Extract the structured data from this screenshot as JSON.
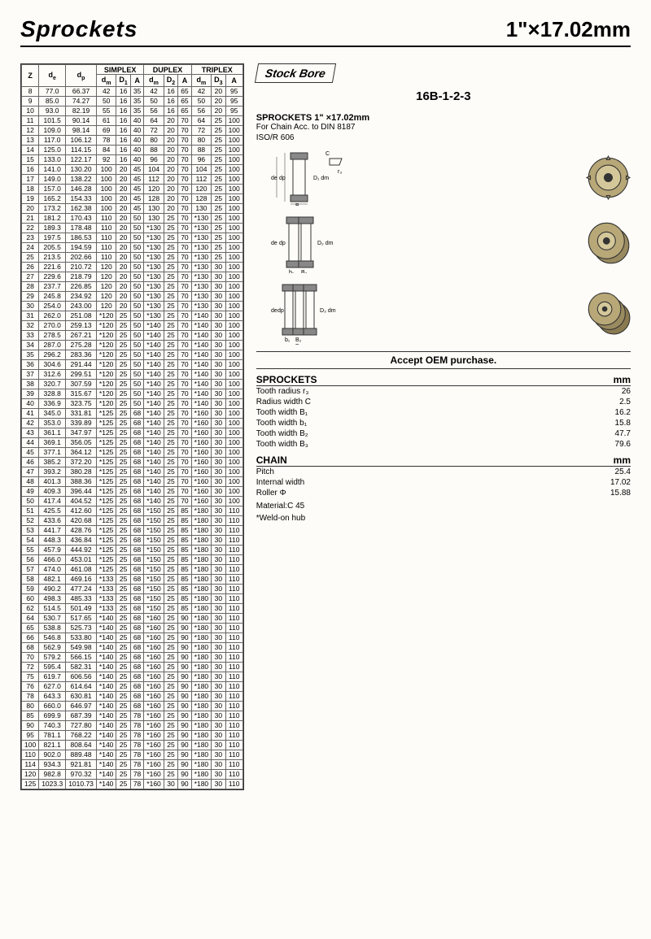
{
  "title": "Sprockets",
  "size_label": "1\"×17.02mm",
  "stock_bore": "Stock Bore",
  "model": "16B-1-2-3",
  "spec_title": "SPROCKETS 1\" ×17.02mm",
  "spec_chain": "For Chain  Acc. to  DIN 8187",
  "spec_iso": "ISO/R 606",
  "oem": "Accept OEM purchase.",
  "table": {
    "headers": {
      "z": "Z",
      "de": "d",
      "dp": "d",
      "simplex": "SIMPLEX",
      "duplex": "DUPLEX",
      "triplex": "TRIPLEX",
      "dm": "d",
      "d1": "D",
      "d2": "D",
      "d3": "D",
      "a": "A"
    },
    "rows": [
      [
        "8",
        "77.0",
        "66.37",
        "42",
        "16",
        "35",
        "42",
        "16",
        "65",
        "42",
        "20",
        "95"
      ],
      [
        "9",
        "85.0",
        "74.27",
        "50",
        "16",
        "35",
        "50",
        "16",
        "65",
        "50",
        "20",
        "95"
      ],
      [
        "10",
        "93.0",
        "82.19",
        "55",
        "16",
        "35",
        "56",
        "16",
        "65",
        "56",
        "20",
        "95"
      ],
      [
        "11",
        "101.5",
        "90.14",
        "61",
        "16",
        "40",
        "64",
        "20",
        "70",
        "64",
        "25",
        "100"
      ],
      [
        "12",
        "109.0",
        "98.14",
        "69",
        "16",
        "40",
        "72",
        "20",
        "70",
        "72",
        "25",
        "100"
      ],
      [
        "13",
        "117.0",
        "106.12",
        "78",
        "16",
        "40",
        "80",
        "20",
        "70",
        "80",
        "25",
        "100"
      ],
      [
        "14",
        "125.0",
        "114.15",
        "84",
        "16",
        "40",
        "88",
        "20",
        "70",
        "88",
        "25",
        "100"
      ],
      [
        "15",
        "133.0",
        "122.17",
        "92",
        "16",
        "40",
        "96",
        "20",
        "70",
        "96",
        "25",
        "100"
      ],
      [
        "16",
        "141.0",
        "130.20",
        "100",
        "20",
        "45",
        "104",
        "20",
        "70",
        "104",
        "25",
        "100"
      ],
      [
        "17",
        "149.0",
        "138.22",
        "100",
        "20",
        "45",
        "112",
        "20",
        "70",
        "112",
        "25",
        "100"
      ],
      [
        "18",
        "157.0",
        "146.28",
        "100",
        "20",
        "45",
        "120",
        "20",
        "70",
        "120",
        "25",
        "100"
      ],
      [
        "19",
        "165.2",
        "154.33",
        "100",
        "20",
        "45",
        "128",
        "20",
        "70",
        "128",
        "25",
        "100"
      ],
      [
        "20",
        "173.2",
        "162.38",
        "100",
        "20",
        "45",
        "130",
        "20",
        "70",
        "130",
        "25",
        "100"
      ],
      [
        "21",
        "181.2",
        "170.43",
        "110",
        "20",
        "50",
        "130",
        "25",
        "70",
        "*130",
        "25",
        "100"
      ],
      [
        "22",
        "189.3",
        "178.48",
        "110",
        "20",
        "50",
        "*130",
        "25",
        "70",
        "*130",
        "25",
        "100"
      ],
      [
        "23",
        "197.5",
        "186.53",
        "110",
        "20",
        "50",
        "*130",
        "25",
        "70",
        "*130",
        "25",
        "100"
      ],
      [
        "24",
        "205.5",
        "194.59",
        "110",
        "20",
        "50",
        "*130",
        "25",
        "70",
        "*130",
        "25",
        "100"
      ],
      [
        "25",
        "213.5",
        "202.66",
        "110",
        "20",
        "50",
        "*130",
        "25",
        "70",
        "*130",
        "25",
        "100"
      ],
      [
        "26",
        "221.6",
        "210.72",
        "120",
        "20",
        "50",
        "*130",
        "25",
        "70",
        "*130",
        "30",
        "100"
      ],
      [
        "27",
        "229.6",
        "218.79",
        "120",
        "20",
        "50",
        "*130",
        "25",
        "70",
        "*130",
        "30",
        "100"
      ],
      [
        "28",
        "237.7",
        "226.85",
        "120",
        "20",
        "50",
        "*130",
        "25",
        "70",
        "*130",
        "30",
        "100"
      ],
      [
        "29",
        "245.8",
        "234.92",
        "120",
        "20",
        "50",
        "*130",
        "25",
        "70",
        "*130",
        "30",
        "100"
      ],
      [
        "30",
        "254.0",
        "243.00",
        "120",
        "20",
        "50",
        "*130",
        "25",
        "70",
        "*130",
        "30",
        "100"
      ],
      [
        "31",
        "262.0",
        "251.08",
        "*120",
        "25",
        "50",
        "*130",
        "25",
        "70",
        "*140",
        "30",
        "100"
      ],
      [
        "32",
        "270.0",
        "259.13",
        "*120",
        "25",
        "50",
        "*140",
        "25",
        "70",
        "*140",
        "30",
        "100"
      ],
      [
        "33",
        "278.5",
        "267.21",
        "*120",
        "25",
        "50",
        "*140",
        "25",
        "70",
        "*140",
        "30",
        "100"
      ],
      [
        "34",
        "287.0",
        "275.28",
        "*120",
        "25",
        "50",
        "*140",
        "25",
        "70",
        "*140",
        "30",
        "100"
      ],
      [
        "35",
        "296.2",
        "283.36",
        "*120",
        "25",
        "50",
        "*140",
        "25",
        "70",
        "*140",
        "30",
        "100"
      ],
      [
        "36",
        "304.6",
        "291.44",
        "*120",
        "25",
        "50",
        "*140",
        "25",
        "70",
        "*140",
        "30",
        "100"
      ],
      [
        "37",
        "312.6",
        "299.51",
        "*120",
        "25",
        "50",
        "*140",
        "25",
        "70",
        "*140",
        "30",
        "100"
      ],
      [
        "38",
        "320.7",
        "307.59",
        "*120",
        "25",
        "50",
        "*140",
        "25",
        "70",
        "*140",
        "30",
        "100"
      ],
      [
        "39",
        "328.8",
        "315.67",
        "*120",
        "25",
        "50",
        "*140",
        "25",
        "70",
        "*140",
        "30",
        "100"
      ],
      [
        "40",
        "336.9",
        "323.75",
        "*120",
        "25",
        "50",
        "*140",
        "25",
        "70",
        "*140",
        "30",
        "100"
      ],
      [
        "41",
        "345.0",
        "331.81",
        "*125",
        "25",
        "68",
        "*140",
        "25",
        "70",
        "*160",
        "30",
        "100"
      ],
      [
        "42",
        "353.0",
        "339.89",
        "*125",
        "25",
        "68",
        "*140",
        "25",
        "70",
        "*160",
        "30",
        "100"
      ],
      [
        "43",
        "361.1",
        "347.97",
        "*125",
        "25",
        "68",
        "*140",
        "25",
        "70",
        "*160",
        "30",
        "100"
      ],
      [
        "44",
        "369.1",
        "356.05",
        "*125",
        "25",
        "68",
        "*140",
        "25",
        "70",
        "*160",
        "30",
        "100"
      ],
      [
        "45",
        "377.1",
        "364.12",
        "*125",
        "25",
        "68",
        "*140",
        "25",
        "70",
        "*160",
        "30",
        "100"
      ],
      [
        "46",
        "385.2",
        "372.20",
        "*125",
        "25",
        "68",
        "*140",
        "25",
        "70",
        "*160",
        "30",
        "100"
      ],
      [
        "47",
        "393.2",
        "380.28",
        "*125",
        "25",
        "68",
        "*140",
        "25",
        "70",
        "*160",
        "30",
        "100"
      ],
      [
        "48",
        "401.3",
        "388.36",
        "*125",
        "25",
        "68",
        "*140",
        "25",
        "70",
        "*160",
        "30",
        "100"
      ],
      [
        "49",
        "409.3",
        "396.44",
        "*125",
        "25",
        "68",
        "*140",
        "25",
        "70",
        "*160",
        "30",
        "100"
      ],
      [
        "50",
        "417.4",
        "404.52",
        "*125",
        "25",
        "68",
        "*140",
        "25",
        "70",
        "*160",
        "30",
        "100"
      ],
      [
        "51",
        "425.5",
        "412.60",
        "*125",
        "25",
        "68",
        "*150",
        "25",
        "85",
        "*180",
        "30",
        "110"
      ],
      [
        "52",
        "433.6",
        "420.68",
        "*125",
        "25",
        "68",
        "*150",
        "25",
        "85",
        "*180",
        "30",
        "110"
      ],
      [
        "53",
        "441.7",
        "428.76",
        "*125",
        "25",
        "68",
        "*150",
        "25",
        "85",
        "*180",
        "30",
        "110"
      ],
      [
        "54",
        "448.3",
        "436.84",
        "*125",
        "25",
        "68",
        "*150",
        "25",
        "85",
        "*180",
        "30",
        "110"
      ],
      [
        "55",
        "457.9",
        "444.92",
        "*125",
        "25",
        "68",
        "*150",
        "25",
        "85",
        "*180",
        "30",
        "110"
      ],
      [
        "56",
        "466.0",
        "453.01",
        "*125",
        "25",
        "68",
        "*150",
        "25",
        "85",
        "*180",
        "30",
        "110"
      ],
      [
        "57",
        "474.0",
        "461.08",
        "*125",
        "25",
        "68",
        "*150",
        "25",
        "85",
        "*180",
        "30",
        "110"
      ],
      [
        "58",
        "482.1",
        "469.16",
        "*133",
        "25",
        "68",
        "*150",
        "25",
        "85",
        "*180",
        "30",
        "110"
      ],
      [
        "59",
        "490.2",
        "477.24",
        "*133",
        "25",
        "68",
        "*150",
        "25",
        "85",
        "*180",
        "30",
        "110"
      ],
      [
        "60",
        "498.3",
        "485.33",
        "*133",
        "25",
        "68",
        "*150",
        "25",
        "85",
        "*180",
        "30",
        "110"
      ],
      [
        "62",
        "514.5",
        "501.49",
        "*133",
        "25",
        "68",
        "*150",
        "25",
        "85",
        "*180",
        "30",
        "110"
      ],
      [
        "64",
        "530.7",
        "517.65",
        "*140",
        "25",
        "68",
        "*160",
        "25",
        "90",
        "*180",
        "30",
        "110"
      ],
      [
        "65",
        "538.8",
        "525.73",
        "*140",
        "25",
        "68",
        "*160",
        "25",
        "90",
        "*180",
        "30",
        "110"
      ],
      [
        "66",
        "546.8",
        "533.80",
        "*140",
        "25",
        "68",
        "*160",
        "25",
        "90",
        "*180",
        "30",
        "110"
      ],
      [
        "68",
        "562.9",
        "549.98",
        "*140",
        "25",
        "68",
        "*160",
        "25",
        "90",
        "*180",
        "30",
        "110"
      ],
      [
        "70",
        "579.2",
        "566.15",
        "*140",
        "25",
        "68",
        "*160",
        "25",
        "90",
        "*180",
        "30",
        "110"
      ],
      [
        "72",
        "595.4",
        "582.31",
        "*140",
        "25",
        "68",
        "*160",
        "25",
        "90",
        "*180",
        "30",
        "110"
      ],
      [
        "75",
        "619.7",
        "606.56",
        "*140",
        "25",
        "68",
        "*160",
        "25",
        "90",
        "*180",
        "30",
        "110"
      ],
      [
        "76",
        "627.0",
        "614.64",
        "*140",
        "25",
        "68",
        "*160",
        "25",
        "90",
        "*180",
        "30",
        "110"
      ],
      [
        "78",
        "643.3",
        "630.81",
        "*140",
        "25",
        "68",
        "*160",
        "25",
        "90",
        "*180",
        "30",
        "110"
      ],
      [
        "80",
        "660.0",
        "646.97",
        "*140",
        "25",
        "68",
        "*160",
        "25",
        "90",
        "*180",
        "30",
        "110"
      ],
      [
        "85",
        "699.9",
        "687.39",
        "*140",
        "25",
        "78",
        "*160",
        "25",
        "90",
        "*180",
        "30",
        "110"
      ],
      [
        "90",
        "740.3",
        "727.80",
        "*140",
        "25",
        "78",
        "*160",
        "25",
        "90",
        "*180",
        "30",
        "110"
      ],
      [
        "95",
        "781.1",
        "768.22",
        "*140",
        "25",
        "78",
        "*160",
        "25",
        "90",
        "*180",
        "30",
        "110"
      ],
      [
        "100",
        "821.1",
        "808.64",
        "*140",
        "25",
        "78",
        "*160",
        "25",
        "90",
        "*180",
        "30",
        "110"
      ],
      [
        "110",
        "902.0",
        "889.48",
        "*140",
        "25",
        "78",
        "*160",
        "25",
        "90",
        "*180",
        "30",
        "110"
      ],
      [
        "114",
        "934.3",
        "921.81",
        "*140",
        "25",
        "78",
        "*160",
        "25",
        "90",
        "*180",
        "30",
        "110"
      ],
      [
        "120",
        "982.8",
        "970.32",
        "*140",
        "25",
        "78",
        "*160",
        "25",
        "90",
        "*180",
        "30",
        "110"
      ],
      [
        "125",
        "1023.3",
        "1010.73",
        "*140",
        "25",
        "78",
        "*160",
        "30",
        "90",
        "*180",
        "30",
        "110"
      ]
    ],
    "breaks": [
      5,
      10,
      15,
      20,
      25,
      30,
      35,
      40,
      45,
      50,
      55,
      60,
      65,
      70,
      75
    ]
  },
  "sprocket_specs": {
    "header": "SPROCKETS",
    "unit": "mm",
    "rows": [
      [
        "Tooth radius r₃",
        "26"
      ],
      [
        "Radius width C",
        "2.5"
      ],
      [
        "Tooth width B₁",
        "16.2"
      ],
      [
        "Tooth width b₁",
        "15.8"
      ],
      [
        "Tooth width B₂",
        "47.7"
      ],
      [
        "Tooth width B₃",
        "79.6"
      ]
    ]
  },
  "chain_specs": {
    "header": "CHAIN",
    "unit": "mm",
    "rows": [
      [
        "Pitch",
        "25.4"
      ],
      [
        "Internal width",
        "17.02"
      ],
      [
        "Roller Φ",
        "15.88"
      ]
    ]
  },
  "material": "Material:C 45",
  "weld_note": "*Weld-on hub"
}
